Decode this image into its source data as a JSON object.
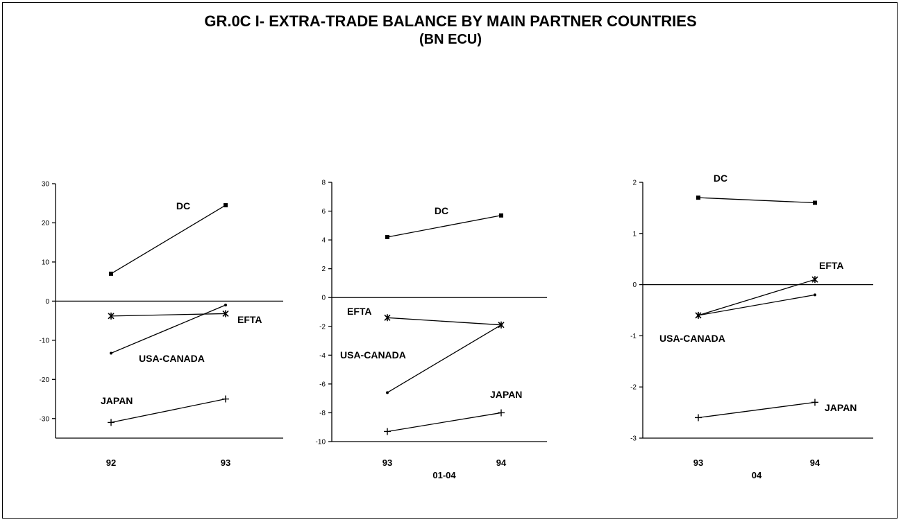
{
  "title_line1": "GR.0C I- EXTRA-TRADE BALANCE BY MAIN PARTNER COUNTRIES",
  "title_line2": "(BN ECU)",
  "chart_data": [
    {
      "type": "line",
      "x": [
        "92",
        "93"
      ],
      "sublabel": "",
      "ylim": [
        -35,
        30
      ],
      "yticks": [
        30,
        20,
        10,
        0,
        -10,
        -20,
        -30
      ],
      "grid": false,
      "series": [
        {
          "name": "DC",
          "marker": "square",
          "values": [
            7,
            24.5
          ]
        },
        {
          "name": "EFTA",
          "marker": "star",
          "values": [
            -3.8,
            -3.2
          ]
        },
        {
          "name": "USA-CANADA",
          "marker": "dot",
          "values": [
            -13.3,
            -1
          ]
        },
        {
          "name": "JAPAN",
          "marker": "plus",
          "values": [
            -31,
            -25
          ]
        }
      ]
    },
    {
      "type": "line",
      "x": [
        "93",
        "94"
      ],
      "sublabel": "01-04",
      "ylim": [
        -10,
        8
      ],
      "yticks": [
        8,
        6,
        4,
        2,
        0,
        -2,
        -4,
        -6,
        -8,
        -10
      ],
      "grid": false,
      "series": [
        {
          "name": "DC",
          "marker": "square",
          "values": [
            4.2,
            5.7
          ]
        },
        {
          "name": "EFTA",
          "marker": "star",
          "values": [
            -1.4,
            -1.9
          ]
        },
        {
          "name": "USA-CANADA",
          "marker": "dot",
          "values": [
            -6.6,
            -1.9
          ]
        },
        {
          "name": "JAPAN",
          "marker": "plus",
          "values": [
            -9.3,
            -8
          ]
        }
      ]
    },
    {
      "type": "line",
      "x": [
        "93",
        "94"
      ],
      "sublabel": "04",
      "ylim": [
        -3,
        2
      ],
      "yticks": [
        2,
        1,
        0,
        -1,
        -2,
        -3
      ],
      "grid": false,
      "series": [
        {
          "name": "DC",
          "marker": "square",
          "values": [
            1.7,
            1.6
          ]
        },
        {
          "name": "EFTA",
          "marker": "star",
          "values": [
            -0.6,
            0.1
          ]
        },
        {
          "name": "USA-CANADA",
          "marker": "dot",
          "values": [
            -0.6,
            -0.2
          ]
        },
        {
          "name": "JAPAN",
          "marker": "plus",
          "values": [
            -2.6,
            -2.3
          ]
        }
      ]
    }
  ]
}
